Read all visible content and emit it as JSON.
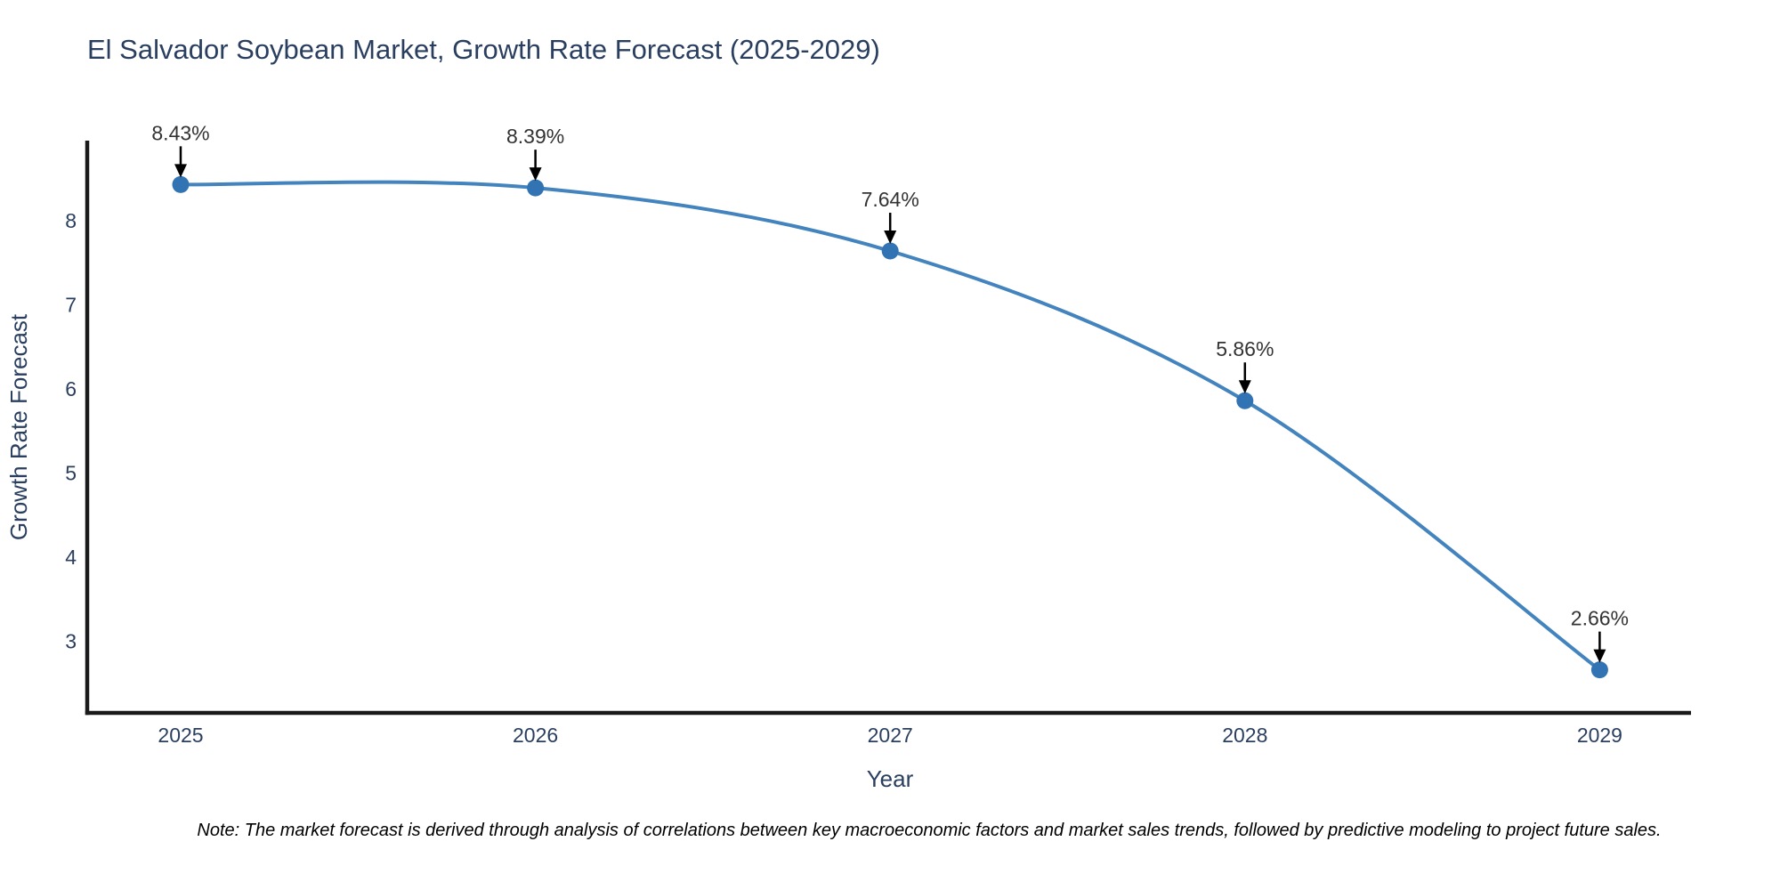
{
  "chart_data": {
    "type": "line",
    "title": "El Salvador Soybean Market, Growth Rate Forecast (2025-2029)",
    "xlabel": "Year",
    "ylabel": "Growth Rate Forecast",
    "x": [
      2025,
      2026,
      2027,
      2028,
      2029
    ],
    "x_tick_labels": [
      "2025",
      "2026",
      "2027",
      "2028",
      "2029"
    ],
    "series": [
      {
        "name": "Growth Rate Forecast",
        "values": [
          8.43,
          8.39,
          7.64,
          5.86,
          2.66
        ]
      }
    ],
    "point_labels": [
      "8.43%",
      "8.39%",
      "7.64%",
      "5.86%",
      "2.66%"
    ],
    "yticks": [
      3,
      4,
      5,
      6,
      7,
      8
    ],
    "ylim": [
      2.15,
      8.95
    ],
    "xlim": [
      2024.73,
      2029.26
    ],
    "line_shape": "spline",
    "grid": false,
    "legend_position": "none",
    "colors": {
      "line": "#4384bf",
      "marker": "#3273b3",
      "axis": "#1a1a1a",
      "title_text": "#2a3f5f",
      "tick_text": "#2a3f5f",
      "annotation_text": "#333333",
      "annotation_arrow": "#000000",
      "background": "#ffffff"
    }
  },
  "footnote": "Note: The market forecast is derived through analysis of correlations between key macroeconomic factors and market sales trends, followed by predictive modeling to project future sales."
}
